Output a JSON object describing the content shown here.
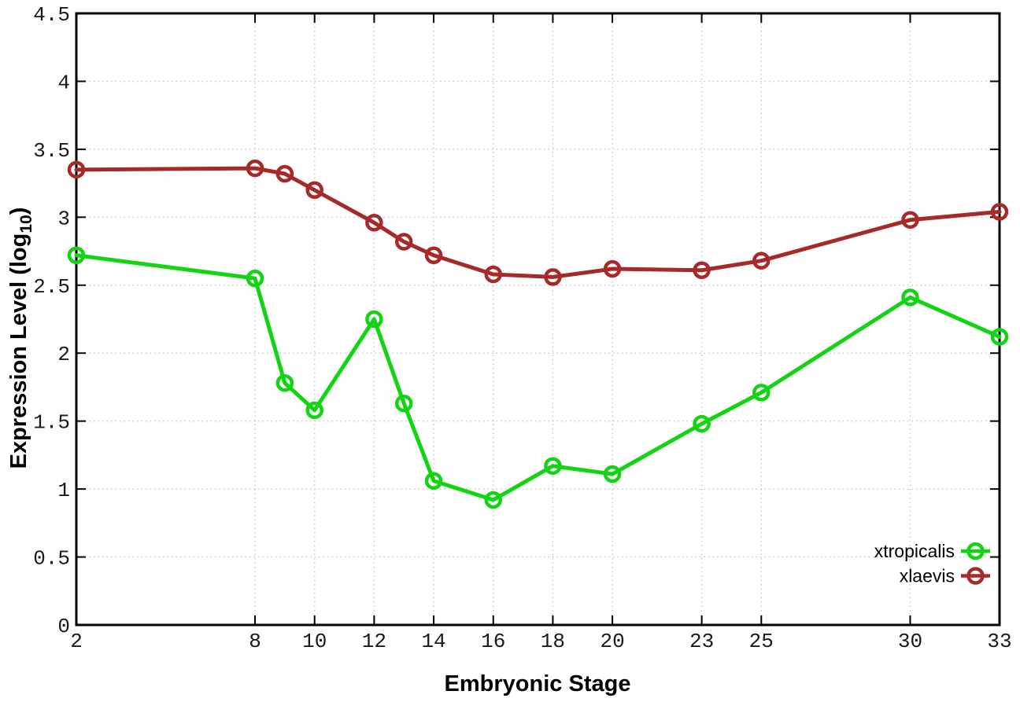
{
  "figure": {
    "background": "#ffffff"
  },
  "labels": {
    "x_title": "Embryonic Stage",
    "y_title_main": "Expression Level (log",
    "y_title_sub": "10",
    "y_title_close": ")"
  },
  "chart_data": {
    "type": "line",
    "title": "",
    "xlabel": "Embryonic Stage",
    "ylabel": "Expression Level (log10)",
    "x": [
      2,
      8,
      9,
      10,
      12,
      13,
      14,
      16,
      18,
      20,
      23,
      25,
      30,
      33
    ],
    "xlim": [
      2,
      33
    ],
    "ylim": [
      0,
      4.5
    ],
    "x_ticks": [
      {
        "value": 2,
        "label": "2"
      },
      {
        "value": 8,
        "label": "8"
      },
      {
        "value": 10,
        "label": "10"
      },
      {
        "value": 12,
        "label": "12"
      },
      {
        "value": 14,
        "label": "14"
      },
      {
        "value": 16,
        "label": "16"
      },
      {
        "value": 18,
        "label": "18"
      },
      {
        "value": 20,
        "label": "20"
      },
      {
        "value": 23,
        "label": "23"
      },
      {
        "value": 25,
        "label": "25"
      },
      {
        "value": 30,
        "label": "30"
      },
      {
        "value": 33,
        "label": "33"
      }
    ],
    "y_ticks": [
      {
        "value": 0,
        "label": "0"
      },
      {
        "value": 0.5,
        "label": "0.5"
      },
      {
        "value": 1,
        "label": "1"
      },
      {
        "value": 1.5,
        "label": "1.5"
      },
      {
        "value": 2,
        "label": "2"
      },
      {
        "value": 2.5,
        "label": "2.5"
      },
      {
        "value": 3,
        "label": "3"
      },
      {
        "value": 3.5,
        "label": "3.5"
      },
      {
        "value": 4,
        "label": "4"
      },
      {
        "value": 4.5,
        "label": "4.5"
      }
    ],
    "grid": true,
    "legend_position": "bottom-right-inside",
    "series": [
      {
        "name": "xtropicalis",
        "color": "#12d412",
        "marker": "open-circle",
        "values": [
          2.72,
          2.55,
          1.78,
          1.58,
          2.25,
          1.63,
          1.06,
          0.92,
          1.17,
          1.11,
          1.48,
          1.71,
          2.41,
          2.12
        ]
      },
      {
        "name": "xlaevis",
        "color": "#a62a2a",
        "marker": "open-circle",
        "values": [
          3.35,
          3.36,
          3.32,
          3.2,
          2.96,
          2.82,
          2.72,
          2.58,
          2.56,
          2.62,
          2.61,
          2.68,
          2.98,
          3.04
        ]
      }
    ]
  },
  "style_colors": {
    "grid": "#c8c8c8",
    "axis": "#000000",
    "tick_text": "#1a1a1a"
  }
}
